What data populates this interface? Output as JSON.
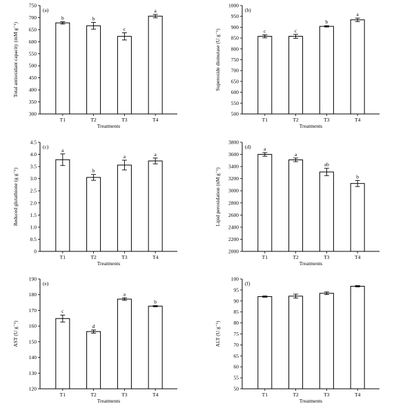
{
  "colors": {
    "bar_fill": "#ffffff",
    "stroke": "#000000",
    "background": "#ffffff"
  },
  "chart_data": [
    {
      "type": "bar",
      "panel_label": "(a)",
      "categories": [
        "T1",
        "T2",
        "T3",
        "T4"
      ],
      "values": [
        678,
        666,
        622,
        706
      ],
      "errors": [
        5,
        14,
        15,
        7
      ],
      "letters": [
        "b",
        "b",
        "c",
        "a"
      ],
      "xlabel": "Treatments",
      "ylabel": "Total antioxidant capacity (mM g⁻¹)",
      "ylim": [
        300,
        750
      ],
      "yticks": [
        300,
        350,
        400,
        450,
        500,
        550,
        600,
        650,
        700,
        750
      ],
      "grid": false
    },
    {
      "type": "bar",
      "panel_label": "(b)",
      "categories": [
        "T1",
        "T2",
        "T3",
        "T4"
      ],
      "values": [
        858,
        858,
        904,
        934
      ],
      "errors": [
        7,
        9,
        3,
        8
      ],
      "letters": [
        "c",
        "c",
        "b",
        "a"
      ],
      "xlabel": "Treatments",
      "ylabel": "Superoxide dismutase (U g⁻¹)",
      "ylim": [
        500,
        1000
      ],
      "yticks": [
        500,
        550,
        600,
        650,
        700,
        750,
        800,
        850,
        900,
        950,
        1000
      ],
      "grid": false
    },
    {
      "type": "bar",
      "panel_label": "(c)",
      "categories": [
        "T1",
        "T2",
        "T3",
        "T4"
      ],
      "values": [
        3.78,
        3.05,
        3.56,
        3.73
      ],
      "errors": [
        0.24,
        0.12,
        0.2,
        0.12
      ],
      "letters": [
        "a",
        "b",
        "a",
        "a"
      ],
      "xlabel": "Treatments",
      "ylabel": "Reduced glutathione (g g⁻¹)",
      "ylim": [
        0,
        4.5
      ],
      "yticks": [
        0,
        0.5,
        1.0,
        1.5,
        2.0,
        2.5,
        3.0,
        3.5,
        4.0,
        4.5
      ],
      "ytick_labels": [
        "0",
        "0.5",
        "1.0",
        "1.5",
        "2.0",
        "2.5",
        "3.0",
        "3.5",
        "4.0",
        "4.5"
      ],
      "grid": false
    },
    {
      "type": "bar",
      "panel_label": "(d)",
      "categories": [
        "T1",
        "T2",
        "T3",
        "T4"
      ],
      "values": [
        3600,
        3510,
        3310,
        3120
      ],
      "errors": [
        30,
        30,
        60,
        50
      ],
      "letters": [
        "a",
        "a",
        "ab",
        "b"
      ],
      "xlabel": "Treatments",
      "ylabel": "Lipid peroxidation (nM g⁻¹)",
      "ylim": [
        2000,
        3800
      ],
      "yticks": [
        2000,
        2200,
        2400,
        2600,
        2800,
        3000,
        3200,
        3400,
        3600,
        3800
      ],
      "grid": false
    },
    {
      "type": "bar",
      "panel_label": "(e)",
      "categories": [
        "T1",
        "T2",
        "T3",
        "T4"
      ],
      "values": [
        164.8,
        156.5,
        177.2,
        172.7
      ],
      "errors": [
        2.2,
        1.0,
        0.8,
        0.4
      ],
      "letters": [
        "c",
        "d",
        "a",
        "b"
      ],
      "xlabel": "Treatments",
      "ylabel": "AST (U g⁻¹)",
      "ylim": [
        120,
        190
      ],
      "yticks": [
        120,
        130,
        140,
        150,
        160,
        170,
        180,
        190
      ],
      "grid": false
    },
    {
      "type": "bar",
      "panel_label": "(f)",
      "categories": [
        "T1",
        "T2",
        "T3",
        "T4"
      ],
      "values": [
        92.0,
        92.2,
        93.5,
        96.7
      ],
      "errors": [
        0.3,
        0.9,
        0.6,
        0.3
      ],
      "letters": [
        "",
        "",
        "",
        ""
      ],
      "xlabel": "Treatments",
      "ylabel": "ALT (U g⁻¹)",
      "ylim": [
        50,
        100
      ],
      "yticks": [
        50,
        55,
        60,
        65,
        70,
        75,
        80,
        85,
        90,
        95,
        100
      ],
      "grid": false
    }
  ]
}
